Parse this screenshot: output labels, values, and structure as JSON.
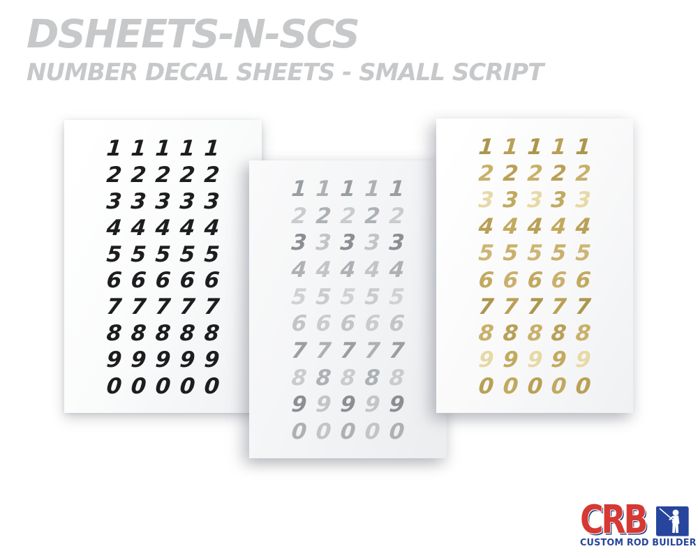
{
  "header": {
    "title": "DSHEETS-N-SCS",
    "subtitle": "NUMBER DECAL SHEETS - SMALL SCRIPT",
    "text_color": "#c7c8ca"
  },
  "sheets": [
    {
      "id": "black",
      "description": "black-number-decal-sheet",
      "digits": [
        "1",
        "2",
        "3",
        "4",
        "5",
        "6",
        "7",
        "8",
        "9",
        "0"
      ],
      "columns": 5,
      "palette": [
        "#1d1d1f"
      ]
    },
    {
      "id": "silver",
      "description": "silver-number-decal-sheet",
      "digits": [
        "1",
        "2",
        "3",
        "4",
        "5",
        "6",
        "7",
        "8",
        "9",
        "0"
      ],
      "columns": 5,
      "palette": [
        "#9b9ea1",
        "#c2c4c6",
        "#cfd1d3",
        "#aeb1b4",
        "#8b8e92",
        "#c9cbcd"
      ]
    },
    {
      "id": "gold",
      "description": "gold-number-decal-sheet",
      "digits": [
        "1",
        "2",
        "3",
        "4",
        "5",
        "6",
        "7",
        "8",
        "9",
        "0"
      ],
      "columns": 5,
      "palette": [
        "#ab964c",
        "#c2a95f",
        "#cdb674",
        "#b9a056",
        "#e7d9a6",
        "#c9b06a"
      ]
    }
  ],
  "logo": {
    "acronym": "CRB",
    "tagline": "CUSTOM ROD BUILDER",
    "red": "#d63832",
    "blue": "#27459c",
    "icon": "fisherman-silhouette"
  }
}
